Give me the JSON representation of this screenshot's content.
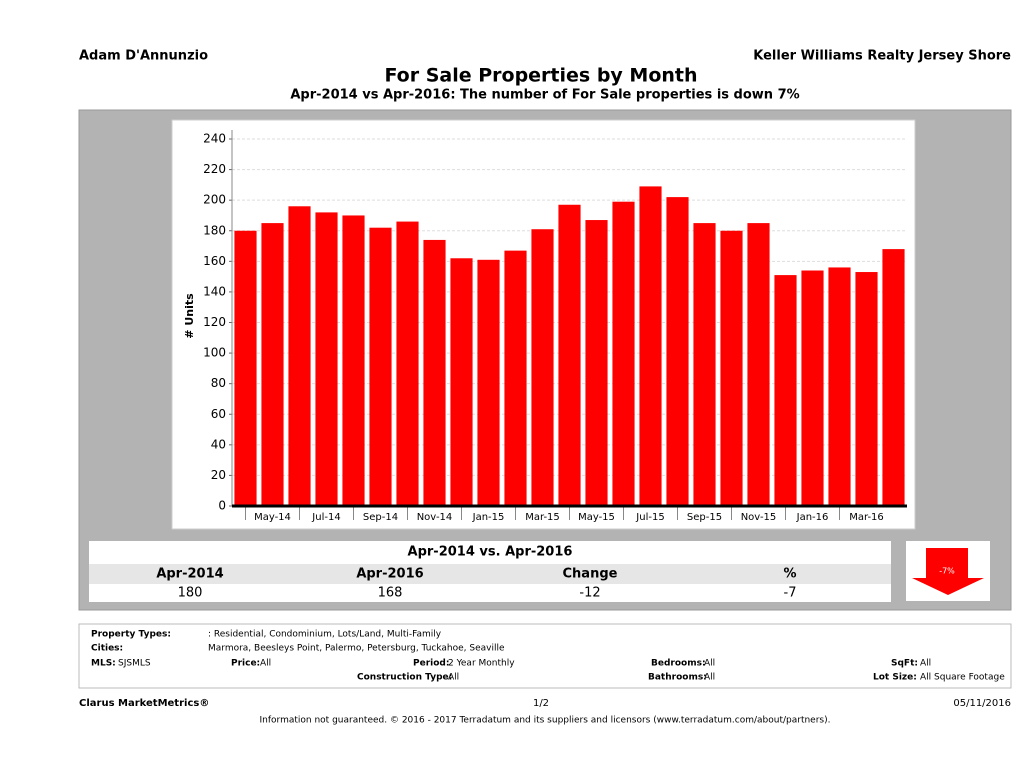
{
  "header": {
    "left": "Adam D'Annunzio",
    "right": "Keller Williams Realty Jersey Shore"
  },
  "chart_data": {
    "type": "bar",
    "title": "For Sale Properties by Month",
    "subtitle": "Apr-2014 vs Apr-2016: The number of For Sale  properties is down 7%",
    "y_label": "# Units",
    "categories": [
      null,
      "May-14",
      null,
      "Jul-14",
      null,
      "Sep-14",
      null,
      "Nov-14",
      null,
      "Jan-15",
      null,
      "Mar-15",
      null,
      "May-15",
      null,
      "Jul-15",
      null,
      "Sep-15",
      null,
      "Nov-15",
      null,
      "Jan-16",
      null,
      "Mar-16",
      null
    ],
    "values": [
      180,
      185,
      196,
      192,
      190,
      182,
      186,
      174,
      162,
      161,
      167,
      181,
      197,
      187,
      199,
      209,
      202,
      185,
      180,
      185,
      151,
      154,
      156,
      153,
      168
    ],
    "color": "#ff0000",
    "ylim": [
      0,
      240
    ],
    "yticks": [
      0,
      20,
      40,
      60,
      80,
      100,
      120,
      140,
      160,
      180,
      200,
      220,
      240
    ],
    "grid": true
  },
  "summary": {
    "title": "Apr-2014 vs. Apr-2016",
    "headers": [
      "Apr-2014",
      "Apr-2016",
      "Change",
      "%"
    ],
    "values": [
      180,
      168,
      -12,
      -7
    ],
    "badge": "-7%"
  },
  "details": [
    {
      "label": "Property Types:",
      "value": ": Residential, Condominium, Lots/Land, Multi-Family"
    },
    {
      "label": "Cities:",
      "value": "Marmora, Beesleys Point, Palermo, Petersburg, Tuckahoe, Seaville"
    },
    {
      "label": "MLS:",
      "value": "SJSMLS"
    },
    {
      "label": "Price:",
      "value": "All"
    },
    {
      "label": "Period:",
      "value": "2 Year Monthly"
    },
    {
      "label": "Bedrooms:",
      "value": "All"
    },
    {
      "label": "SqFt:",
      "value": "All"
    },
    {
      "label": "Construction Type:",
      "value": "All"
    },
    {
      "label": "Bathrooms:",
      "value": "All"
    },
    {
      "label": "Lot Size:",
      "value": "All Square Footage"
    }
  ],
  "footer": {
    "left": "Clarus MarketMetrics®",
    "page": "1/2",
    "date": "05/11/2016",
    "disclaimer": "Information not guaranteed. © 2016 - 2017 Terradatum and its suppliers and licensors (www.terradatum.com/about/partners)."
  }
}
